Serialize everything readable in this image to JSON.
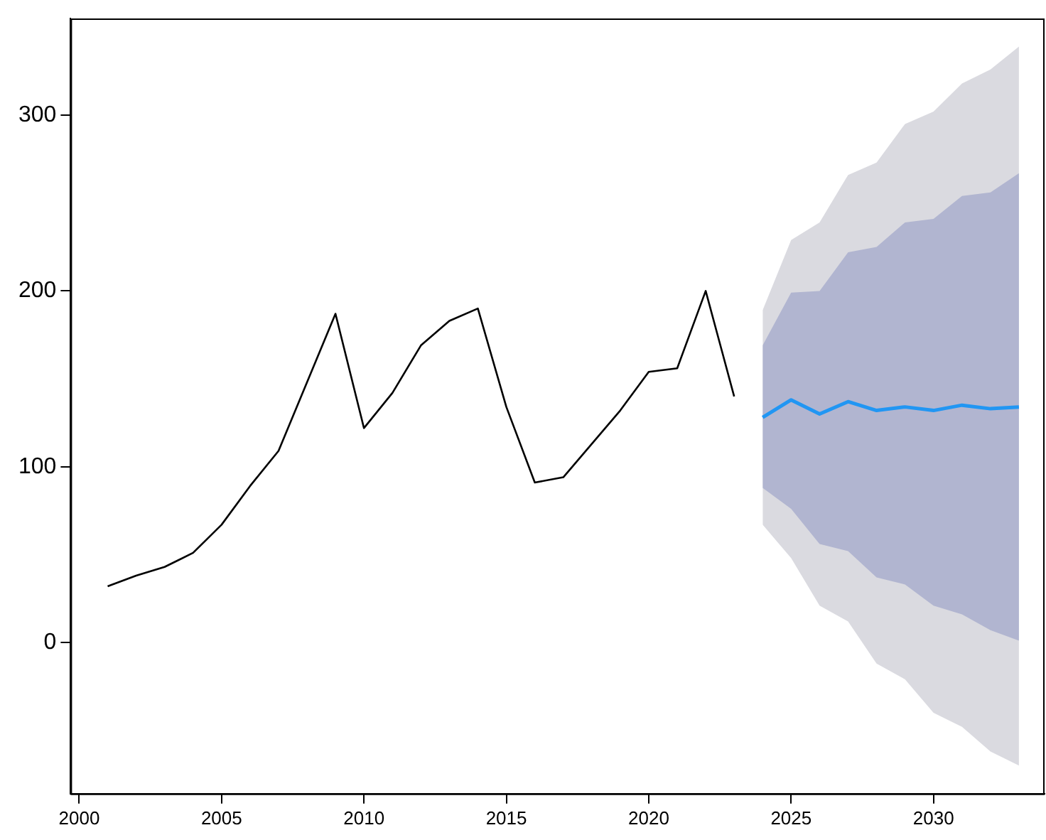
{
  "chart_data": {
    "type": "line",
    "x": [
      2001,
      2002,
      2003,
      2004,
      2005,
      2006,
      2007,
      2008,
      2009,
      2010,
      2011,
      2012,
      2013,
      2014,
      2015,
      2016,
      2017,
      2018,
      2019,
      2020,
      2021,
      2022,
      2023
    ],
    "series": [
      {
        "color": "#dadae0",
        "x": [
          2024,
          2025,
          2026,
          2027,
          2028,
          2029,
          2030,
          2031,
          2032,
          2033
        ],
        "values": [
          null,
          null,
          null,
          null,
          null,
          null,
          null,
          null,
          null,
          null
        ],
        "lower": [
          67,
          48,
          21,
          12,
          -12,
          -21,
          -40,
          -48,
          -62,
          -70
        ],
        "upper": [
          189,
          229,
          239,
          266,
          273,
          295,
          302,
          318,
          326,
          339
        ]
      },
      {
        "color": "#b1b5d0",
        "x": [
          2024,
          2025,
          2026,
          2027,
          2028,
          2029,
          2030,
          2031,
          2032,
          2033
        ],
        "values": [
          null,
          null,
          null,
          null,
          null,
          null,
          null,
          null,
          null,
          null
        ],
        "lower": [
          88,
          76,
          56,
          52,
          37,
          33,
          21,
          16,
          7,
          1
        ],
        "upper": [
          169,
          199,
          200,
          222,
          225,
          239,
          241,
          254,
          256,
          267
        ]
      },
      {
        "color": "#000000",
        "values": [
          32,
          38,
          43,
          51,
          67,
          89,
          109,
          148,
          187,
          122,
          142,
          169,
          183,
          190,
          134,
          91,
          94,
          113,
          132,
          154,
          156,
          200,
          140
        ]
      },
      {
        "color": "#2196f3",
        "x": [
          2024,
          2025,
          2026,
          2027,
          2028,
          2029,
          2030,
          2031,
          2032,
          2033
        ],
        "values": [
          128,
          138,
          130,
          137,
          132,
          134,
          132,
          135,
          133,
          134
        ]
      }
    ],
    "xlim": [
      1999.7,
      2033.9
    ],
    "xticks": [
      2000,
      2005,
      2010,
      2015,
      2020,
      2025,
      2030
    ],
    "ylim": [
      -86,
      355
    ],
    "yticks": [
      0,
      100,
      200,
      300
    ],
    "grid": false,
    "legend": false,
    "marker": "none",
    "line_style": "solid"
  }
}
